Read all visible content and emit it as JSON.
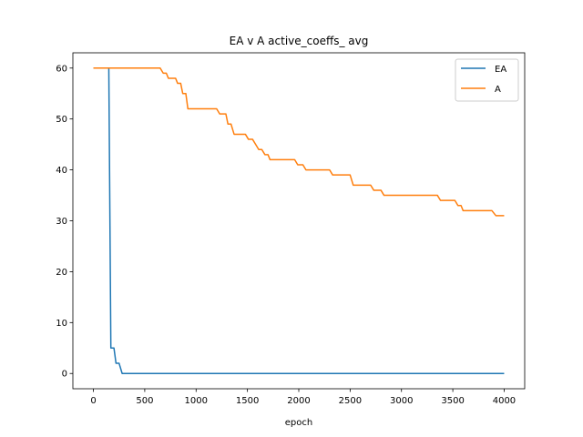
{
  "chart_data": {
    "type": "line",
    "title": "EA v A active_coeffs_ avg",
    "xlabel": "epoch",
    "ylabel": "",
    "xlim": [
      -200,
      4200
    ],
    "ylim": [
      -3,
      63
    ],
    "xticks": [
      0,
      500,
      1000,
      1500,
      2000,
      2500,
      3000,
      3500,
      4000
    ],
    "yticks": [
      0,
      10,
      20,
      30,
      40,
      50,
      60
    ],
    "grid": false,
    "legend_position": "top-right",
    "series": [
      {
        "name": "EA",
        "color": "#1f77b4",
        "points": [
          [
            0,
            60
          ],
          [
            150,
            60
          ],
          [
            170,
            5
          ],
          [
            200,
            5
          ],
          [
            220,
            2
          ],
          [
            250,
            2
          ],
          [
            280,
            0
          ],
          [
            4000,
            0
          ]
        ]
      },
      {
        "name": "A",
        "color": "#ff7f0e",
        "points": [
          [
            0,
            60
          ],
          [
            650,
            60
          ],
          [
            680,
            59
          ],
          [
            710,
            59
          ],
          [
            730,
            58
          ],
          [
            800,
            58
          ],
          [
            820,
            57
          ],
          [
            850,
            57
          ],
          [
            870,
            55
          ],
          [
            900,
            55
          ],
          [
            920,
            52
          ],
          [
            1200,
            52
          ],
          [
            1230,
            51
          ],
          [
            1290,
            51
          ],
          [
            1310,
            49
          ],
          [
            1340,
            49
          ],
          [
            1370,
            47
          ],
          [
            1480,
            47
          ],
          [
            1510,
            46
          ],
          [
            1550,
            46
          ],
          [
            1580,
            45
          ],
          [
            1610,
            44
          ],
          [
            1640,
            44
          ],
          [
            1670,
            43
          ],
          [
            1700,
            43
          ],
          [
            1720,
            42
          ],
          [
            1960,
            42
          ],
          [
            1990,
            41
          ],
          [
            2040,
            41
          ],
          [
            2070,
            40
          ],
          [
            2300,
            40
          ],
          [
            2330,
            39
          ],
          [
            2500,
            39
          ],
          [
            2530,
            37
          ],
          [
            2700,
            37
          ],
          [
            2730,
            36
          ],
          [
            2800,
            36
          ],
          [
            2830,
            35
          ],
          [
            3350,
            35
          ],
          [
            3380,
            34
          ],
          [
            3520,
            34
          ],
          [
            3550,
            33
          ],
          [
            3580,
            33
          ],
          [
            3600,
            32
          ],
          [
            3880,
            32
          ],
          [
            3920,
            31
          ],
          [
            4000,
            31
          ]
        ]
      }
    ]
  }
}
